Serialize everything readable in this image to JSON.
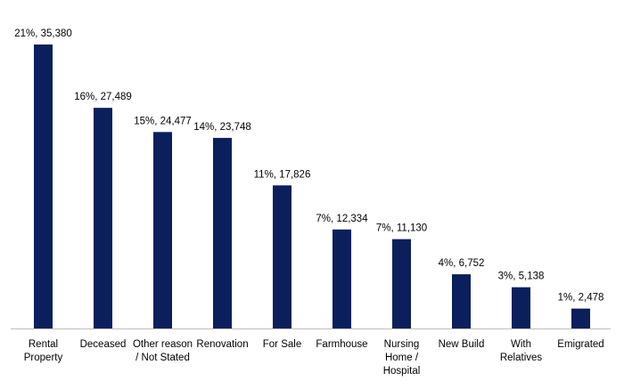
{
  "chart_data": {
    "type": "bar",
    "title": "",
    "xlabel": "",
    "ylabel": "",
    "ylim": [
      0,
      35380
    ],
    "grid": false,
    "legend": "none",
    "bar_color": "#0a1f5c",
    "axis_color": "#bfbfbf",
    "categories": [
      [
        "Rental",
        "Property"
      ],
      [
        "Deceased"
      ],
      [
        "Other reason",
        "/ Not Stated"
      ],
      [
        "Renovation"
      ],
      [
        "For Sale"
      ],
      [
        "Farmhouse"
      ],
      [
        "Nursing",
        "Home /",
        "Hospital"
      ],
      [
        "New Build"
      ],
      [
        "With",
        "Relatives"
      ],
      [
        "Emigrated"
      ]
    ],
    "values": [
      35380,
      27489,
      24477,
      23748,
      17826,
      12334,
      11130,
      6752,
      5138,
      2478
    ],
    "data_labels": [
      "21%, 35,380",
      "16%, 27,489",
      "15%, 24,477",
      "14%, 23,748",
      "11%, 17,826",
      "7%, 12,334",
      "7%, 11,130",
      "4%, 6,752",
      "3%, 5,138",
      "1%, 2,478"
    ]
  }
}
